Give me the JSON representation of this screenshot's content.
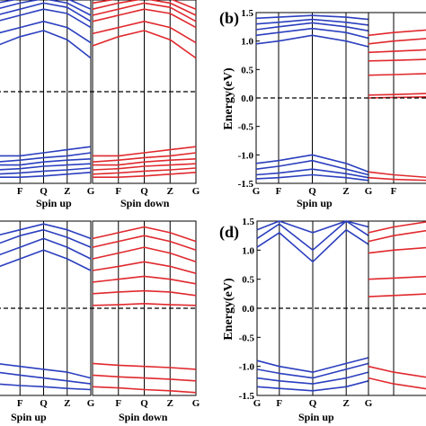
{
  "colors": {
    "spin_up": "#2b3fbf",
    "spin_down": "#e0292e",
    "fermi": "#000000",
    "axes": "#000000"
  },
  "chart_data": [
    {
      "type": "line",
      "panel": "a",
      "panel_label": "",
      "ylabel": "",
      "ylim": [
        -1.5,
        1.5
      ],
      "yticks": [],
      "kpoint_labels_up": [
        "F",
        "Q",
        "Z",
        "G"
      ],
      "kpoint_labels_down": [
        "F",
        "Q",
        "Z",
        "G"
      ],
      "kpoints_up": [
        0.0,
        0.5,
        1.0,
        1.5,
        2.0
      ],
      "kpoints_down": [
        0.0,
        0.5,
        1.0,
        1.5,
        2.0
      ],
      "xlabel_up": "Spin up",
      "xlabel_down": "Spin down",
      "fermi_level": 0.0,
      "spin_up": [
        [
          1.15,
          1.25,
          1.35,
          1.28,
          1.05
        ],
        [
          1.25,
          1.35,
          1.45,
          1.38,
          1.15
        ],
        [
          1.35,
          1.45,
          1.52,
          1.45,
          1.25
        ],
        [
          1.45,
          1.52,
          1.6,
          1.52,
          1.35
        ],
        [
          0.75,
          0.9,
          1.0,
          0.85,
          0.55
        ],
        [
          0.95,
          1.05,
          1.15,
          1.05,
          0.8
        ],
        [
          -1.05,
          -1.05,
          -1.0,
          -0.95,
          -0.9
        ],
        [
          -1.15,
          -1.12,
          -1.08,
          -1.05,
          -1.0
        ],
        [
          -1.2,
          -1.2,
          -1.15,
          -1.12,
          -1.1
        ],
        [
          -1.28,
          -1.26,
          -1.22,
          -1.2,
          -1.18
        ],
        [
          -1.35,
          -1.33,
          -1.3,
          -1.28,
          -1.25
        ],
        [
          -1.4,
          -1.4,
          -1.38,
          -1.35,
          -1.32
        ]
      ],
      "spin_down": [
        [
          1.15,
          1.25,
          1.35,
          1.28,
          1.05
        ],
        [
          1.25,
          1.35,
          1.45,
          1.38,
          1.15
        ],
        [
          1.35,
          1.45,
          1.52,
          1.45,
          1.25
        ],
        [
          1.45,
          1.52,
          1.6,
          1.52,
          1.35
        ],
        [
          0.75,
          0.9,
          1.0,
          0.85,
          0.55
        ],
        [
          0.95,
          1.05,
          1.15,
          1.05,
          0.8
        ],
        [
          -1.05,
          -1.05,
          -1.0,
          -0.95,
          -0.9
        ],
        [
          -1.15,
          -1.12,
          -1.08,
          -1.05,
          -1.0
        ],
        [
          -1.2,
          -1.2,
          -1.15,
          -1.12,
          -1.1
        ],
        [
          -1.28,
          -1.26,
          -1.22,
          -1.2,
          -1.18
        ],
        [
          -1.35,
          -1.33,
          -1.3,
          -1.28,
          -1.25
        ],
        [
          -1.4,
          -1.4,
          -1.38,
          -1.35,
          -1.32
        ]
      ]
    },
    {
      "type": "line",
      "panel": "b",
      "panel_label": "(b)",
      "ylabel": "Energy(eV)",
      "ylim": [
        -1.5,
        1.5
      ],
      "yticks": [
        "-1.5",
        "-1.0",
        "-0.5",
        "0.0",
        "0.5",
        "1.0",
        "1.5"
      ],
      "kpoint_labels_up": [
        "G",
        "F",
        "Q",
        "Z",
        "G"
      ],
      "kpoint_labels_down": [
        "F",
        "G"
      ],
      "kpoints_up": [
        0.0,
        0.4,
        1.0,
        1.6,
        2.0
      ],
      "kpoints_down": [
        0.0,
        0.4,
        1.0
      ],
      "xlabel_up": "Spin up",
      "xlabel_down": "",
      "fermi_level": 0.0,
      "spin_up": [
        [
          1.4,
          1.42,
          1.45,
          1.42,
          1.38
        ],
        [
          1.3,
          1.33,
          1.38,
          1.33,
          1.28
        ],
        [
          1.2,
          1.25,
          1.32,
          1.25,
          1.18
        ],
        [
          1.1,
          1.15,
          1.22,
          1.15,
          1.05
        ],
        [
          0.95,
          1.0,
          1.1,
          1.0,
          0.9
        ],
        [
          -1.15,
          -1.1,
          -1.0,
          -1.15,
          -1.3
        ],
        [
          -1.25,
          -1.2,
          -1.1,
          -1.25,
          -1.35
        ],
        [
          -1.35,
          -1.32,
          -1.25,
          -1.33,
          -1.4
        ],
        [
          -1.42,
          -1.4,
          -1.35,
          -1.4,
          -1.45
        ]
      ],
      "spin_down": [
        [
          1.1,
          1.15,
          1.2
        ],
        [
          0.95,
          1.0,
          1.05
        ],
        [
          0.8,
          0.82,
          0.85
        ],
        [
          0.65,
          0.66,
          0.68
        ],
        [
          0.4,
          0.41,
          0.43
        ],
        [
          0.05,
          0.06,
          0.08
        ],
        [
          0.0,
          0.01,
          0.02
        ],
        [
          -1.3,
          -1.35,
          -1.4
        ],
        [
          -1.4,
          -1.43,
          -1.45
        ]
      ]
    },
    {
      "type": "line",
      "panel": "c",
      "panel_label": "",
      "ylabel": "",
      "ylim": [
        -1.5,
        1.5
      ],
      "yticks": [],
      "kpoint_labels_up": [
        "F",
        "Q",
        "Z",
        "G"
      ],
      "kpoint_labels_down": [
        "F",
        "Q",
        "Z",
        "G"
      ],
      "kpoints_up": [
        0.0,
        0.5,
        1.0,
        1.5,
        2.0
      ],
      "kpoints_down": [
        0.0,
        0.5,
        1.0,
        1.5,
        2.0
      ],
      "xlabel_up": "Spin up",
      "xlabel_down": "Spin down",
      "fermi_level": 0.0,
      "spin_up": [
        [
          1.25,
          1.35,
          1.45,
          1.35,
          1.2
        ],
        [
          1.1,
          1.25,
          1.35,
          1.22,
          1.05
        ],
        [
          0.9,
          1.05,
          1.2,
          1.05,
          0.85
        ],
        [
          0.7,
          0.85,
          1.0,
          0.85,
          0.65
        ],
        [
          -0.95,
          -1.0,
          -1.05,
          -1.1,
          -1.2
        ],
        [
          -1.1,
          -1.15,
          -1.2,
          -1.25,
          -1.3
        ],
        [
          -1.3,
          -1.33,
          -1.35,
          -1.38,
          -1.4
        ]
      ],
      "spin_down": [
        [
          1.2,
          1.3,
          1.4,
          1.3,
          1.15
        ],
        [
          1.05,
          1.15,
          1.25,
          1.15,
          1.0
        ],
        [
          0.85,
          0.95,
          1.05,
          0.95,
          0.8
        ],
        [
          0.65,
          0.72,
          0.8,
          0.72,
          0.6
        ],
        [
          0.45,
          0.5,
          0.55,
          0.5,
          0.42
        ],
        [
          0.25,
          0.28,
          0.3,
          0.28,
          0.22
        ],
        [
          0.05,
          0.06,
          0.08,
          0.06,
          0.05
        ],
        [
          -0.95,
          -0.98,
          -1.0,
          -1.02,
          -1.05
        ],
        [
          -1.15,
          -1.18,
          -1.2,
          -1.22,
          -1.25
        ],
        [
          -1.35,
          -1.37,
          -1.4,
          -1.42,
          -1.45
        ]
      ]
    },
    {
      "type": "line",
      "panel": "d",
      "panel_label": "(d)",
      "ylabel": "Energy(eV)",
      "ylim": [
        -1.5,
        1.5
      ],
      "yticks": [
        "-1.5",
        "-1.0",
        "-0.5",
        "0.0",
        "0.5",
        "1.0",
        "1.5"
      ],
      "kpoint_labels_up": [
        "G",
        "F",
        "Q",
        "Z",
        "G"
      ],
      "kpoint_labels_down": [],
      "kpoints_up": [
        0.0,
        0.4,
        1.0,
        1.6,
        2.0
      ],
      "kpoints_down": [
        0.0,
        0.4,
        1.0
      ],
      "xlabel_up": "Spin up",
      "xlabel_down": "",
      "fermi_level": 0.0,
      "spin_up": [
        [
          1.05,
          1.3,
          0.8,
          1.35,
          1.1
        ],
        [
          1.2,
          1.45,
          1.0,
          1.5,
          1.25
        ],
        [
          1.35,
          1.5,
          1.3,
          1.5,
          1.4
        ],
        [
          -0.9,
          -1.0,
          -1.1,
          -0.95,
          -0.85
        ],
        [
          -1.05,
          -1.12,
          -1.2,
          -1.05,
          -0.95
        ],
        [
          -1.2,
          -1.25,
          -1.3,
          -1.2,
          -1.1
        ],
        [
          -1.35,
          -1.38,
          -1.42,
          -1.35,
          -1.25
        ]
      ],
      "spin_down": [
        [
          1.3,
          1.4,
          1.5
        ],
        [
          1.15,
          1.25,
          1.35
        ],
        [
          0.95,
          1.0,
          1.05
        ],
        [
          0.5,
          0.52,
          0.55
        ],
        [
          0.2,
          0.22,
          0.25
        ],
        [
          -1.0,
          -1.1,
          -1.2
        ],
        [
          -1.2,
          -1.3,
          -1.4
        ]
      ]
    }
  ]
}
